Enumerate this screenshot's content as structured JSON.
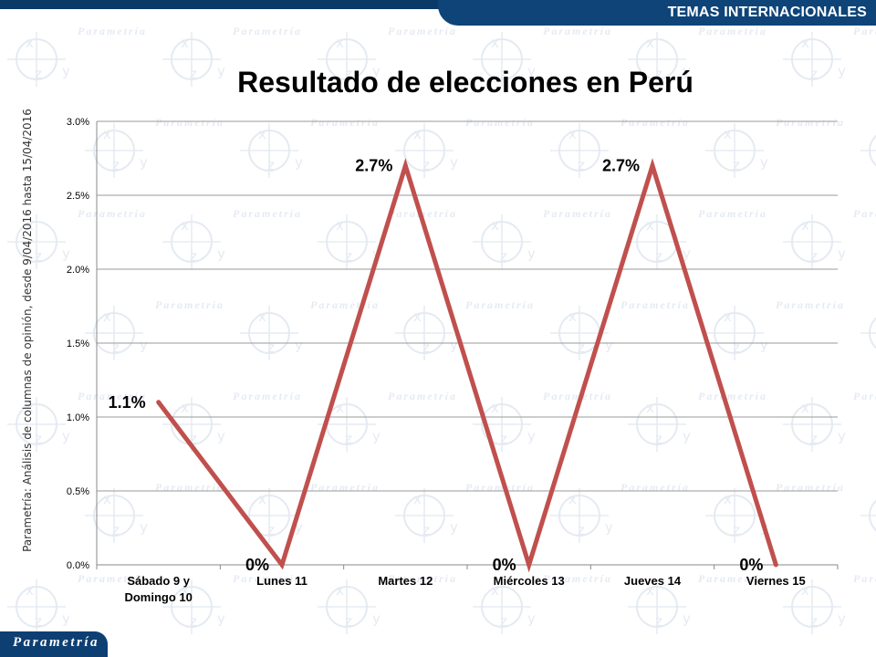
{
  "header": {
    "section_label": "TEMAS INTERNACIONALES"
  },
  "sidenote": "Parametría: Análisis de columnas de opinión, desde 9/04/2016 hasta 15/04/2016",
  "brand": {
    "name": "Parametría"
  },
  "watermark": {
    "text": "Parametría",
    "glyphs": [
      "x",
      "y",
      "z"
    ]
  },
  "colors": {
    "line": "#c0504d",
    "header_blue": "#0e4478",
    "brand_blue": "#0e3f73"
  },
  "chart_data": {
    "type": "line",
    "title": "Resultado de elecciones en Perú",
    "categories": [
      [
        "Sábado 9 y",
        "Domingo 10"
      ],
      [
        "Lunes 11"
      ],
      [
        "Martes 12"
      ],
      [
        "Miércoles 13"
      ],
      [
        "Jueves 14"
      ],
      [
        "Viernes 15"
      ]
    ],
    "series": [
      {
        "values": [
          1.1,
          0,
          2.7,
          0,
          2.7,
          0
        ]
      }
    ],
    "data_labels": [
      "1.1%",
      "0%",
      "2.7%",
      "0%",
      "2.7%",
      "0%"
    ],
    "y_ticks": [
      "0.0%",
      "0.5%",
      "1.0%",
      "1.5%",
      "2.0%",
      "2.5%",
      "3.0%"
    ],
    "ylim": [
      0,
      3
    ],
    "grid": true,
    "xlabel": "",
    "ylabel": ""
  }
}
